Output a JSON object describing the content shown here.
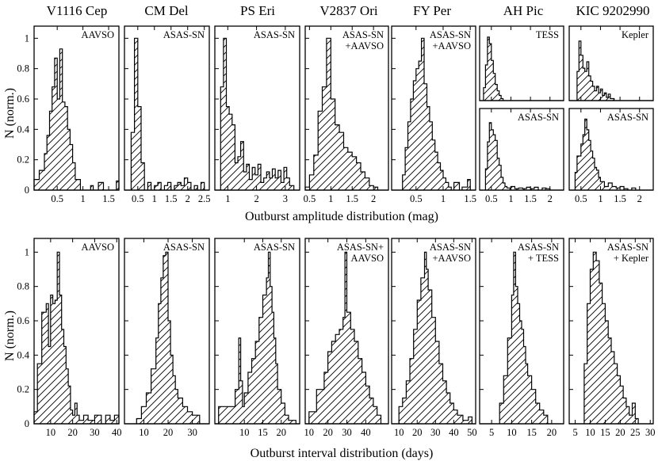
{
  "figure": {
    "amp_xlabel": "Outburst amplitude distribution (mag)",
    "int_xlabel": "Outburst interval distribution (days)",
    "ylabel": "N (norm.)"
  },
  "stars": [
    "V1116 Cep",
    "CM Del",
    "PS Eri",
    "V2837 Ori",
    "FY Per",
    "AH Pic",
    "KIC 9202990"
  ],
  "chart_data": [
    {
      "type": "histogram",
      "row": "amplitude",
      "title": "V1116 Cep",
      "annotation": [
        "AAVSO"
      ],
      "xlabel": "Outburst amplitude distribution (mag)",
      "ylabel": "N (norm.)",
      "xlim": [
        0.05,
        1.7
      ],
      "ylim": [
        0,
        1.08
      ],
      "xticks": [
        0.5,
        1,
        1.5
      ],
      "yticks": [
        0,
        0.2,
        0.4,
        0.6,
        0.8,
        1
      ],
      "bin_edges": [
        0.05,
        0.15,
        0.25,
        0.3,
        0.35,
        0.4,
        0.45,
        0.5,
        0.55,
        0.6,
        0.65,
        0.7,
        0.75,
        0.8,
        0.85,
        0.95,
        1.05,
        1.15,
        1.2,
        1.3,
        1.4,
        1.5,
        1.65,
        1.7
      ],
      "counts": [
        0.07,
        0.13,
        0.24,
        0.36,
        0.52,
        0.68,
        0.87,
        0.6,
        0.93,
        0.58,
        0.55,
        0.4,
        0.3,
        0.18,
        0.07,
        0,
        0,
        0.03,
        0,
        0.05,
        0,
        0,
        0.06
      ]
    },
    {
      "type": "histogram",
      "row": "amplitude",
      "title": "CM Del",
      "annotation": [
        "ASAS-SN"
      ],
      "xlabel": "Outburst amplitude distribution (mag)",
      "ylabel": "N (norm.)",
      "xlim": [
        0.1,
        2.65
      ],
      "ylim": [
        0,
        1.08
      ],
      "xticks": [
        0.5,
        1,
        1.5,
        2,
        2.5
      ],
      "yticks": [
        0,
        0.2,
        0.4,
        0.6,
        0.8,
        1
      ],
      "bin_edges": [
        0.1,
        0.3,
        0.4,
        0.5,
        0.6,
        0.7,
        0.8,
        0.9,
        1.0,
        1.1,
        1.2,
        1.3,
        1.4,
        1.5,
        1.6,
        1.7,
        1.8,
        1.9,
        2.0,
        2.1,
        2.2,
        2.3,
        2.4,
        2.5,
        2.65
      ],
      "counts": [
        0,
        0.38,
        1.0,
        0.55,
        0.18,
        0,
        0.05,
        0,
        0.03,
        0.05,
        0,
        0.03,
        0.05,
        0,
        0.03,
        0.05,
        0.03,
        0.08,
        0.05,
        0,
        0.03,
        0,
        0.05,
        0
      ]
    },
    {
      "type": "histogram",
      "row": "amplitude",
      "title": "PS Eri",
      "annotation": [
        "ASAS-SN"
      ],
      "xlabel": "Outburst amplitude distribution (mag)",
      "ylabel": "N (norm.)",
      "xlim": [
        0.55,
        3.5
      ],
      "ylim": [
        0,
        1.08
      ],
      "xticks": [
        1,
        2,
        3
      ],
      "yticks": [
        0,
        0.2,
        0.4,
        0.6,
        0.8,
        1
      ],
      "bin_edges": [
        0.55,
        0.75,
        0.85,
        0.95,
        1.05,
        1.15,
        1.25,
        1.35,
        1.45,
        1.55,
        1.65,
        1.75,
        1.85,
        1.95,
        2.05,
        2.15,
        2.25,
        2.35,
        2.45,
        2.55,
        2.65,
        2.75,
        2.85,
        2.95,
        3.05,
        3.15,
        3.3,
        3.5
      ],
      "counts": [
        0,
        0.68,
        1.0,
        0.55,
        0.5,
        0.43,
        0.18,
        0.22,
        0.32,
        0.12,
        0.17,
        0.07,
        0.15,
        0.1,
        0.17,
        0.05,
        0.08,
        0.12,
        0.08,
        0.14,
        0.08,
        0.13,
        0.05,
        0.15,
        0.08,
        0.03,
        0
      ]
    },
    {
      "type": "histogram",
      "row": "amplitude",
      "title": "V2837 Ori",
      "annotation": [
        "ASAS-SN",
        "+AAVSO"
      ],
      "xlabel": "Outburst amplitude distribution (mag)",
      "ylabel": "N (norm.)",
      "xlim": [
        0.4,
        2.35
      ],
      "ylim": [
        0,
        1.08
      ],
      "xticks": [
        0.5,
        1,
        1.5,
        2
      ],
      "yticks": [
        0,
        0.2,
        0.4,
        0.6,
        0.8,
        1
      ],
      "bin_edges": [
        0.4,
        0.5,
        0.6,
        0.7,
        0.8,
        0.9,
        1.0,
        1.1,
        1.2,
        1.3,
        1.4,
        1.5,
        1.6,
        1.7,
        1.8,
        1.9,
        2.0,
        2.1,
        2.35
      ],
      "counts": [
        0.02,
        0.1,
        0.23,
        0.52,
        0.68,
        1.0,
        0.6,
        0.43,
        0.38,
        0.28,
        0.25,
        0.22,
        0.18,
        0.12,
        0.08,
        0.03,
        0.02,
        0
      ]
    },
    {
      "type": "histogram",
      "row": "amplitude",
      "title": "FY Per",
      "annotation": [
        "ASAS-SN",
        "+AAVSO"
      ],
      "xlabel": "Outburst amplitude distribution (mag)",
      "ylabel": "N (norm.)",
      "xlim": [
        0.05,
        1.6
      ],
      "ylim": [
        0,
        1.08
      ],
      "xticks": [
        0.5,
        1,
        1.5
      ],
      "yticks": [
        0,
        0.2,
        0.4,
        0.6,
        0.8,
        1
      ],
      "bin_edges": [
        0.05,
        0.25,
        0.3,
        0.35,
        0.4,
        0.45,
        0.5,
        0.55,
        0.6,
        0.65,
        0.7,
        0.75,
        0.8,
        0.85,
        0.9,
        0.95,
        1.0,
        1.05,
        1.1,
        1.15,
        1.2,
        1.3,
        1.35,
        1.45,
        1.5,
        1.6
      ],
      "counts": [
        0,
        0.1,
        0.28,
        0.45,
        0.6,
        0.72,
        0.8,
        0.85,
        1.0,
        0.7,
        0.55,
        0.45,
        0.33,
        0.25,
        0.18,
        0.13,
        0.08,
        0.05,
        0.02,
        0,
        0.05,
        0,
        0.02,
        0.07,
        0
      ]
    },
    {
      "type": "histogram",
      "row": "amplitude",
      "title": "AH Pic",
      "annotation": [
        "TESS"
      ],
      "subpanel": "top",
      "xlabel": "Outburst amplitude distribution (mag)",
      "ylabel": "N (norm.)",
      "xlim": [
        0.2,
        2.35
      ],
      "ylim": [
        0,
        1.15
      ],
      "xticks": [
        0.5,
        1,
        1.5,
        2
      ],
      "yticks": [],
      "bin_edges": [
        0.2,
        0.3,
        0.35,
        0.4,
        0.45,
        0.5,
        0.55,
        0.6,
        0.65,
        0.7,
        0.75,
        0.8,
        2.35
      ],
      "counts": [
        0,
        0.2,
        0.55,
        0.98,
        0.88,
        0.62,
        0.42,
        0.25,
        0.15,
        0.08,
        0.03,
        0
      ]
    },
    {
      "type": "histogram",
      "row": "amplitude",
      "title": "AH Pic",
      "annotation": [
        "ASAS-SN"
      ],
      "subpanel": "bottom",
      "xlabel": "Outburst amplitude distribution (mag)",
      "ylabel": "N (norm.)",
      "xlim": [
        0.2,
        2.35
      ],
      "ylim": [
        0,
        1.15
      ],
      "xticks": [
        0.5,
        1,
        1.5,
        2
      ],
      "yticks": [],
      "bin_edges": [
        0.2,
        0.35,
        0.4,
        0.45,
        0.5,
        0.55,
        0.6,
        0.65,
        0.7,
        0.75,
        0.8,
        0.85,
        0.9,
        1.0,
        1.1,
        1.2,
        1.3,
        1.4,
        1.5,
        1.6,
        1.7,
        1.8,
        1.9,
        2.0,
        2.35
      ],
      "counts": [
        0,
        0.3,
        0.68,
        0.95,
        0.85,
        0.78,
        0.7,
        0.45,
        0.35,
        0.18,
        0.1,
        0.05,
        0.03,
        0.05,
        0.02,
        0.03,
        0.02,
        0.04,
        0.02,
        0.04,
        0,
        0.03,
        0.02,
        0
      ]
    },
    {
      "type": "histogram",
      "row": "amplitude",
      "title": "KIC 9202990",
      "annotation": [
        "Kepler"
      ],
      "subpanel": "top",
      "xlabel": "Outburst amplitude distribution (mag)",
      "ylabel": "N (norm.)",
      "xlim": [
        0.2,
        2.35
      ],
      "ylim": [
        0,
        1.15
      ],
      "xticks": [
        0.5,
        1,
        1.5,
        2
      ],
      "yticks": [],
      "bin_edges": [
        0.2,
        0.4,
        0.45,
        0.5,
        0.55,
        0.6,
        0.65,
        0.7,
        0.75,
        0.8,
        0.85,
        0.9,
        0.95,
        1.0,
        1.05,
        1.1,
        1.15,
        1.2,
        1.25,
        1.35,
        2.35
      ],
      "counts": [
        0,
        0.45,
        0.92,
        0.7,
        0.5,
        0.45,
        0.6,
        0.38,
        0.3,
        0.22,
        0.15,
        0.22,
        0.12,
        0.18,
        0.08,
        0.12,
        0.05,
        0.1,
        0.03,
        0
      ]
    },
    {
      "type": "histogram",
      "row": "amplitude",
      "title": "KIC 9202990",
      "annotation": [
        "ASAS-SN"
      ],
      "subpanel": "bottom",
      "xlabel": "Outburst amplitude distribution (mag)",
      "ylabel": "N (norm.)",
      "xlim": [
        0.2,
        2.35
      ],
      "ylim": [
        0,
        1.15
      ],
      "xticks": [
        0.5,
        1,
        1.5,
        2
      ],
      "yticks": [],
      "bin_edges": [
        0.2,
        0.35,
        0.4,
        0.5,
        0.55,
        0.6,
        0.65,
        0.7,
        0.75,
        0.8,
        0.85,
        0.9,
        0.95,
        1.0,
        1.1,
        1.2,
        1.3,
        1.4,
        1.5,
        1.6,
        1.7,
        1.8,
        1.9,
        2.35
      ],
      "counts": [
        0,
        0.25,
        0.48,
        0.65,
        0.78,
        1.0,
        0.85,
        0.7,
        0.55,
        0.45,
        0.32,
        0.28,
        0.18,
        0.12,
        0.05,
        0.1,
        0.05,
        0.03,
        0.05,
        0.02,
        0,
        0.03,
        0
      ]
    },
    {
      "type": "histogram",
      "row": "interval",
      "title": "V1116 Cep",
      "annotation": [
        "AAVSO"
      ],
      "xlabel": "Outburst interval distribution (days)",
      "ylabel": "N (norm.)",
      "xlim": [
        2.5,
        41
      ],
      "ylim": [
        0,
        1.08
      ],
      "xticks": [
        10,
        20,
        30,
        40
      ],
      "yticks": [
        0,
        0.2,
        0.4,
        0.6,
        0.8,
        1
      ],
      "bin_edges": [
        2.5,
        4,
        6,
        8,
        9,
        10,
        11,
        12,
        13,
        14,
        15,
        16,
        17,
        18,
        19,
        20,
        21,
        22,
        23,
        25,
        27,
        30,
        33,
        35,
        37,
        39,
        41
      ],
      "counts": [
        0.07,
        0.35,
        0.65,
        0.7,
        0.45,
        0.75,
        0.7,
        0.72,
        1.0,
        0.75,
        0.55,
        0.45,
        0.32,
        0.22,
        0.08,
        0.05,
        0.12,
        0.05,
        0.02,
        0.05,
        0.02,
        0.05,
        0,
        0.05,
        0.02,
        0.05
      ]
    },
    {
      "type": "histogram",
      "row": "interval",
      "title": "CM Del",
      "annotation": [
        "ASAS-SN"
      ],
      "xlabel": "Outburst interval distribution (days)",
      "ylabel": "N (norm.)",
      "xlim": [
        2,
        37
      ],
      "ylim": [
        0,
        1.08
      ],
      "xticks": [
        10,
        20,
        30
      ],
      "yticks": [
        0,
        0.2,
        0.4,
        0.6,
        0.8,
        1
      ],
      "bin_edges": [
        2,
        7,
        9,
        11,
        13,
        15,
        16,
        17,
        18,
        19,
        20,
        21,
        22,
        23,
        24,
        26,
        28,
        30,
        33,
        37
      ],
      "counts": [
        0,
        0.03,
        0.1,
        0.18,
        0.32,
        0.5,
        0.7,
        0.85,
        0.98,
        1.0,
        0.6,
        0.4,
        0.28,
        0.2,
        0.15,
        0.1,
        0.07,
        0.05,
        0
      ]
    },
    {
      "type": "histogram",
      "row": "interval",
      "title": "PS Eri",
      "annotation": [
        "ASAS-SN"
      ],
      "xlabel": "Outburst interval distribution (days)",
      "ylabel": "N (norm.)",
      "xlim": [
        2,
        25
      ],
      "ylim": [
        0,
        1.08
      ],
      "xticks": [
        10,
        15,
        20
      ],
      "yticks": [
        0,
        0.2,
        0.4,
        0.6,
        0.8,
        1
      ],
      "bin_edges": [
        2,
        3,
        7.5,
        8.5,
        9,
        9.5,
        10,
        11,
        12,
        13,
        14,
        15,
        16,
        16.5,
        17,
        17.5,
        18,
        18.5,
        19,
        20,
        21,
        22,
        24,
        25
      ],
      "counts": [
        0,
        0.1,
        0.2,
        0.5,
        0.25,
        0.1,
        0.18,
        0.3,
        0.38,
        0.48,
        0.62,
        0.75,
        0.85,
        1.0,
        0.8,
        0.65,
        0.5,
        0.35,
        0.2,
        0.12,
        0.05,
        0.02,
        0
      ]
    },
    {
      "type": "histogram",
      "row": "interval",
      "title": "V2837 Ori",
      "annotation": [
        "ASAS-SN+",
        "AAVSO"
      ],
      "xlabel": "Outburst interval distribution (days)",
      "ylabel": "N (norm.)",
      "xlim": [
        8,
        52
      ],
      "ylim": [
        0,
        1.08
      ],
      "xticks": [
        10,
        20,
        30,
        40
      ],
      "yticks": [
        0,
        0.2,
        0.4,
        0.6,
        0.8,
        1
      ],
      "bin_edges": [
        8,
        10,
        14,
        18,
        20,
        22,
        24,
        26,
        28,
        29,
        30,
        32,
        34,
        36,
        38,
        40,
        42,
        44,
        46,
        48,
        52
      ],
      "counts": [
        0,
        0.07,
        0.2,
        0.3,
        0.42,
        0.48,
        0.52,
        0.55,
        0.62,
        1.0,
        0.65,
        0.55,
        0.48,
        0.38,
        0.3,
        0.22,
        0.15,
        0.1,
        0.05,
        0
      ]
    },
    {
      "type": "histogram",
      "row": "interval",
      "title": "FY Per",
      "annotation": [
        "ASAS-SN",
        "+AAVSO"
      ],
      "xlabel": "Outburst interval distribution (days)",
      "ylabel": "N (norm.)",
      "xlim": [
        6,
        52
      ],
      "ylim": [
        0,
        1.08
      ],
      "xticks": [
        10,
        20,
        30,
        40,
        50
      ],
      "yticks": [
        0,
        0.2,
        0.4,
        0.6,
        0.8,
        1
      ],
      "bin_edges": [
        6,
        10,
        12,
        14,
        16,
        18,
        20,
        22,
        24,
        25,
        26,
        28,
        30,
        32,
        34,
        36,
        38,
        40,
        42,
        45,
        48,
        50,
        52
      ],
      "counts": [
        0,
        0.1,
        0.15,
        0.25,
        0.38,
        0.55,
        0.72,
        0.85,
        1.0,
        0.9,
        0.78,
        0.62,
        0.48,
        0.35,
        0.25,
        0.18,
        0.12,
        0.08,
        0.05,
        0.02,
        0.04,
        0
      ]
    },
    {
      "type": "histogram",
      "row": "interval",
      "title": "AH Pic",
      "annotation": [
        "ASAS-SN",
        "+ TESS"
      ],
      "xlabel": "Outburst interval distribution (days)",
      "ylabel": "N (norm.)",
      "xlim": [
        2,
        23
      ],
      "ylim": [
        0,
        1.08
      ],
      "xticks": [
        5,
        10,
        15,
        20
      ],
      "yticks": [
        0,
        0.2,
        0.4,
        0.6,
        0.8,
        1
      ],
      "bin_edges": [
        2,
        7,
        8,
        9,
        10,
        10.5,
        11,
        11.5,
        12,
        12.5,
        13,
        13.5,
        14,
        15,
        16,
        17,
        18,
        19,
        23
      ],
      "counts": [
        0,
        0.12,
        0.28,
        0.5,
        0.75,
        1.0,
        0.8,
        0.7,
        0.6,
        0.55,
        0.45,
        0.35,
        0.28,
        0.2,
        0.12,
        0.08,
        0.05,
        0
      ]
    },
    {
      "type": "histogram",
      "row": "interval",
      "title": "KIC 9202990",
      "annotation": [
        "ASAS-SN",
        "+ Kepler"
      ],
      "xlabel": "Outburst interval distribution (days)",
      "ylabel": "N (norm.)",
      "xlim": [
        3,
        31
      ],
      "ylim": [
        0,
        1.08
      ],
      "xticks": [
        5,
        10,
        15,
        20,
        25,
        30
      ],
      "yticks": [
        0,
        0.2,
        0.4,
        0.6,
        0.8,
        1
      ],
      "bin_edges": [
        3,
        8,
        9,
        10,
        11,
        12,
        13,
        14,
        15,
        16,
        17,
        18,
        19,
        20,
        21,
        22,
        23,
        24,
        25,
        26,
        31
      ],
      "counts": [
        0,
        0.35,
        0.7,
        0.9,
        1.0,
        0.95,
        0.82,
        0.7,
        0.6,
        0.5,
        0.42,
        0.35,
        0.28,
        0.22,
        0.15,
        0.1,
        0.05,
        0.12,
        0.03,
        0
      ]
    }
  ]
}
